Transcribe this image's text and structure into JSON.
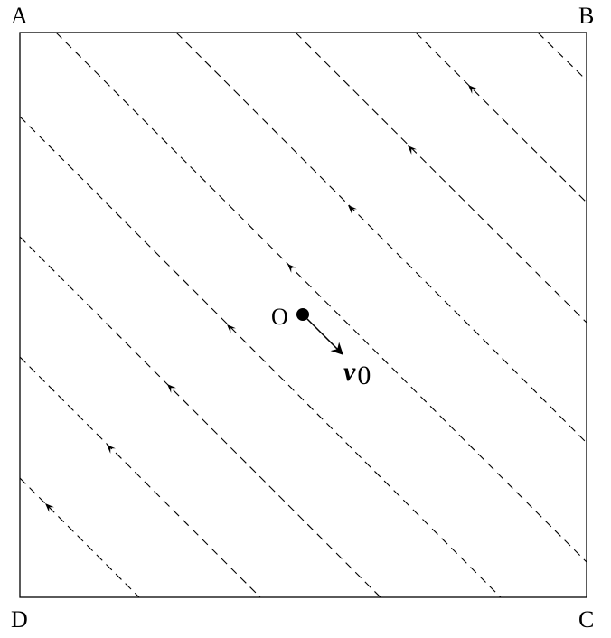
{
  "corners": {
    "a": "A",
    "b": "B",
    "c": "C",
    "d": "D"
  },
  "origin": {
    "label": "O"
  },
  "velocity": {
    "symbol": "v",
    "subscript": "0"
  },
  "colors": {
    "ink": "#000000",
    "background": "#ffffff"
  }
}
